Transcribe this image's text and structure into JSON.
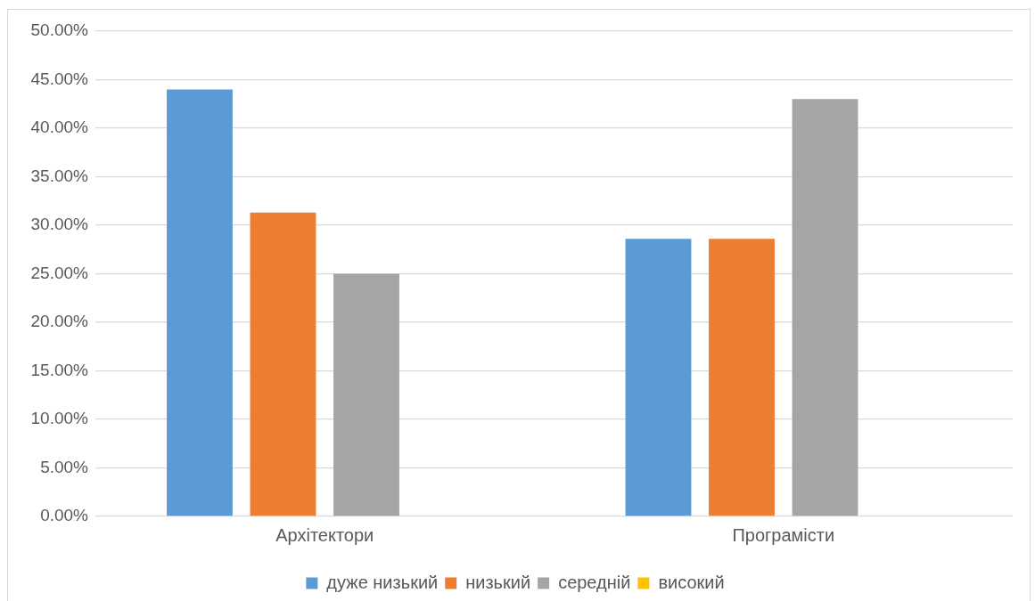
{
  "chart_data": {
    "type": "bar",
    "categories": [
      "Архітектори",
      "Програмісти"
    ],
    "series": [
      {
        "name": "дуже низький",
        "color": "#5b9bd5",
        "values": [
          44,
          28.6
        ]
      },
      {
        "name": "низький",
        "color": "#ed7d31",
        "values": [
          31.3,
          28.6
        ]
      },
      {
        "name": "середній",
        "color": "#a5a5a5",
        "values": [
          25,
          43
        ]
      },
      {
        "name": "високий",
        "color": "#ffc000",
        "values": [
          null,
          null
        ]
      }
    ],
    "ylim": [
      0,
      50
    ],
    "yticks": [
      {
        "value": 0,
        "label": "0.00%"
      },
      {
        "value": 5,
        "label": "5.00%"
      },
      {
        "value": 10,
        "label": "10.00%"
      },
      {
        "value": 15,
        "label": "15.00%"
      },
      {
        "value": 20,
        "label": "20.00%"
      },
      {
        "value": 25,
        "label": "25.00%"
      },
      {
        "value": 30,
        "label": "30.00%"
      },
      {
        "value": 35,
        "label": "35.00%"
      },
      {
        "value": 40,
        "label": "40.00%"
      },
      {
        "value": 45,
        "label": "45.00%"
      },
      {
        "value": 50,
        "label": "50.00%"
      }
    ],
    "grid": "y",
    "legend": "bottom"
  }
}
